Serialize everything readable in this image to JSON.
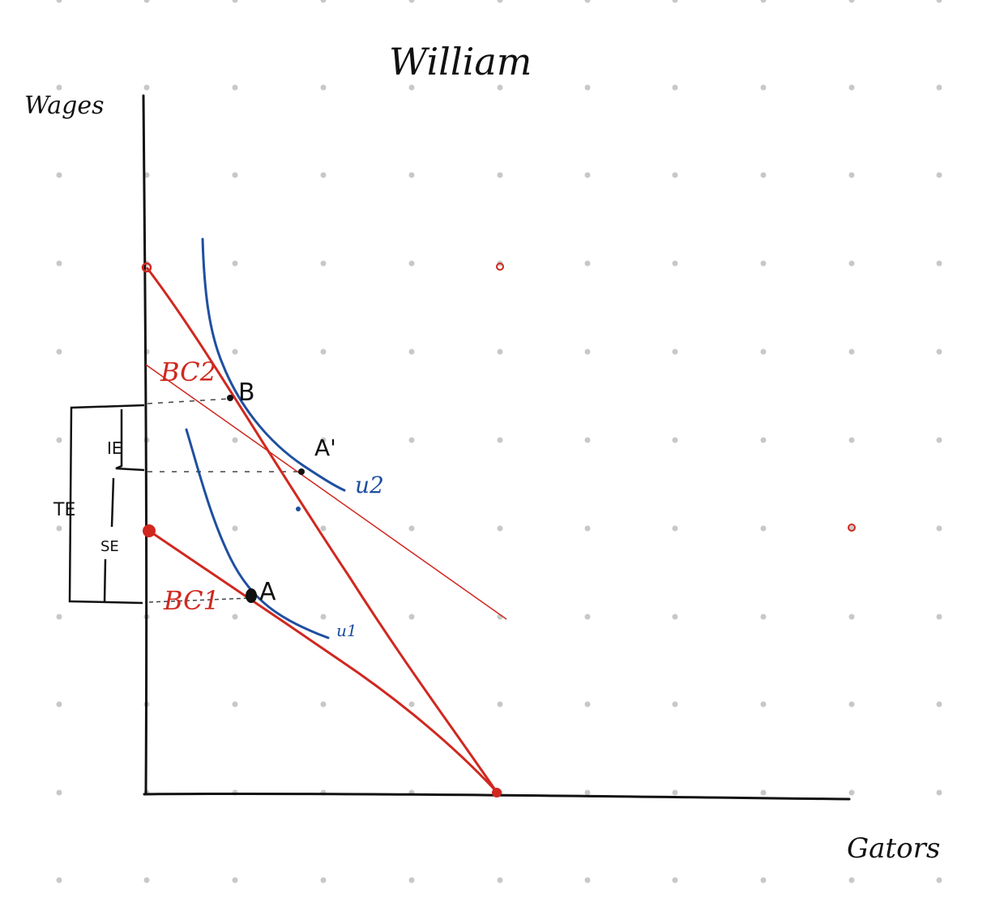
{
  "title": "William",
  "y_axis_label": "Wages",
  "x_axis_label": "Gators",
  "budget_constraints": [
    "BC1",
    "BC2"
  ],
  "indifference_curves": [
    "u2",
    "u1"
  ],
  "points": [
    "B",
    "A'",
    "A"
  ],
  "effects": [
    "IE",
    "TE",
    "SE"
  ],
  "colors": {
    "axes": "#111111",
    "budget": "#d0281f",
    "indifference": "#1f4fa0",
    "grid_dots": "#c8c8c8"
  }
}
